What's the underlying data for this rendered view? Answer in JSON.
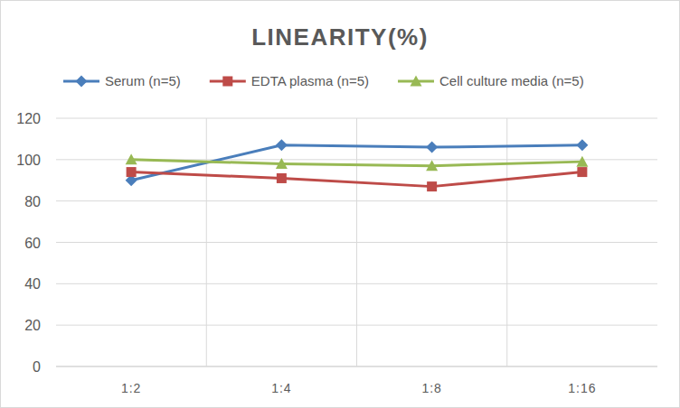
{
  "chart_data": {
    "type": "line",
    "title": "LINEARITY(%)",
    "categories": [
      "1:2",
      "1:4",
      "1:8",
      "1:16"
    ],
    "series": [
      {
        "name": "Serum (n=5)",
        "color": "#4a7ebb",
        "marker": "diamond",
        "values": [
          90,
          107,
          106,
          107
        ]
      },
      {
        "name": "EDTA plasma (n=5)",
        "color": "#be4b48",
        "marker": "square",
        "values": [
          94,
          91,
          87,
          94
        ]
      },
      {
        "name": "Cell culture media (n=5)",
        "color": "#98b954",
        "marker": "triangle",
        "values": [
          100,
          98,
          97,
          99
        ]
      }
    ],
    "ylim": [
      0,
      120
    ],
    "yticks": [
      0,
      20,
      40,
      60,
      80,
      100,
      120
    ],
    "grid": true,
    "legend": "top"
  }
}
